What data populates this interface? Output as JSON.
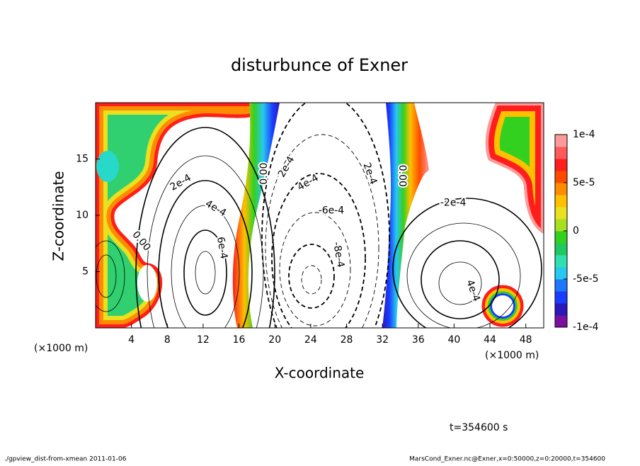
{
  "chart_data": {
    "type": "contour",
    "title": "disturbunce of Exner",
    "x_label": "X-coordinate",
    "y_label": "Z-coordinate",
    "axis_unit": "(×1000 m)",
    "xlim": [
      0,
      50
    ],
    "xticks": [
      4,
      8,
      12,
      16,
      20,
      24,
      28,
      32,
      36,
      40,
      44,
      48
    ],
    "ylim": [
      0,
      20
    ],
    "yticks": [
      5,
      10,
      15
    ],
    "colorbar_lim": [
      -0.0001,
      0.0001
    ],
    "colorbar_ticks": [
      {
        "value": 0.0001,
        "label": "1e-4"
      },
      {
        "value": 5e-05,
        "label": "5e-5"
      },
      0,
      {
        "value": -5e-05,
        "label": "-5e-5"
      },
      {
        "value": -0.0001,
        "label": "-1e-4"
      }
    ],
    "colorbar_colors": [
      "#7a0fa0",
      "#2a18b8",
      "#1a3cff",
      "#1e78ff",
      "#28c8f0",
      "#30e0b0",
      "#20c860",
      "#34d020",
      "#a8e020",
      "#e8e020",
      "#ffc000",
      "#ff8c00",
      "#ff4a00",
      "#ff1e1e",
      "#ff5a5a",
      "#ff9a9a"
    ],
    "contour_labels": [
      {
        "text": "0.00",
        "x": 18.8,
        "y": 13.7
      },
      {
        "text": "0.00",
        "x": 5.1,
        "y": 7.7
      },
      {
        "text": "2e-4",
        "x": 9.5,
        "y": 12.9
      },
      {
        "text": "4e-4",
        "x": 13.4,
        "y": 10.6
      },
      {
        "text": "6e-4",
        "x": 14.1,
        "y": 7.1
      },
      {
        "text": "2e-4",
        "x": 21.3,
        "y": 14.3
      },
      {
        "text": "4e-4",
        "x": 23.7,
        "y": 12.9
      },
      {
        "text": "-6e-4",
        "x": 26.3,
        "y": 10.4
      },
      {
        "text": "-8e-4",
        "x": 27.1,
        "y": 6.5
      },
      {
        "text": "2e-4",
        "x": 30.6,
        "y": 13.7
      },
      {
        "text": "0.00",
        "x": 34.2,
        "y": 13.5
      },
      {
        "text": "-2e-4",
        "x": 39.9,
        "y": 11.1
      },
      {
        "text": "4e-4",
        "x": 42.1,
        "y": 3.3
      }
    ],
    "time_label": "t=354600 s",
    "footer_left": "./gpview_dist-from-xmean  2011-01-06",
    "footer_right": "MarsCond_Exner.nc@Exner,x=0:50000,z=0:20000,t=354600"
  }
}
